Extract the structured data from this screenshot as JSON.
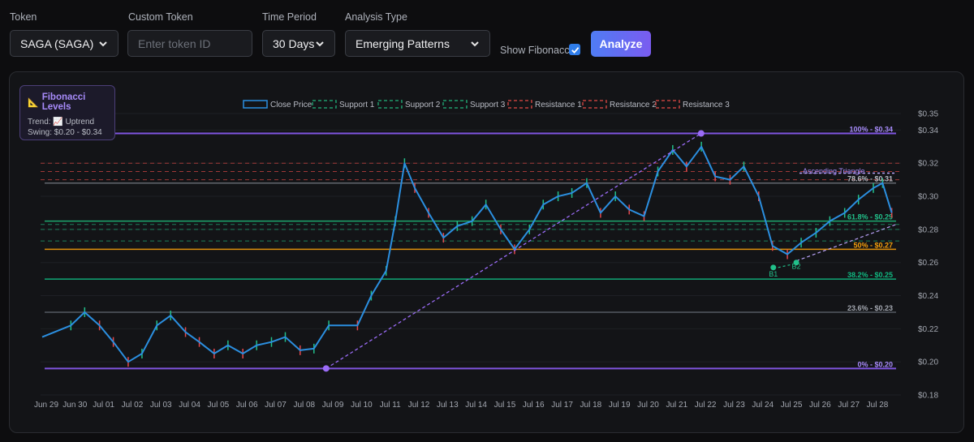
{
  "controls": {
    "token_label": "Token",
    "token_value": "SAGA (SAGA)",
    "custom_token_label": "Custom Token",
    "custom_token_placeholder": "Enter token ID",
    "time_period_label": "Time Period",
    "time_period_value": "30 Days",
    "analysis_type_label": "Analysis Type",
    "analysis_type_value": "Emerging Patterns",
    "show_fibonacci_label": "Show Fibonacci",
    "show_fibonacci_checked": true,
    "analyze_label": "Analyze"
  },
  "fib_panel": {
    "title": "Fibonacci Levels",
    "trend": "Trend: 📈 Uptrend",
    "swing": "Swing: $0.20 - $0.34"
  },
  "colors": {
    "price": "#2b8fe0",
    "bull": "#22c08a",
    "bear": "#e5484d",
    "support": "#1f9a6b",
    "resistance": "#c2413f",
    "fib": "#8b5cf6",
    "fib50": "#f59e0b",
    "fib382": "#10b981"
  },
  "chart_data": {
    "type": "line",
    "legend": [
      "Close Price",
      "Support 1",
      "Support 2",
      "Support 3",
      "Resistance 1",
      "Resistance 2",
      "Resistance 3"
    ],
    "x_ticks": [
      "Jun 29",
      "Jun 30",
      "Jul 01",
      "Jul 02",
      "Jul 03",
      "Jul 04",
      "Jul 05",
      "Jul 06",
      "Jul 07",
      "Jul 08",
      "Jul 09",
      "Jul 10",
      "Jul 11",
      "Jul 12",
      "Jul 13",
      "Jul 14",
      "Jul 15",
      "Jul 16",
      "Jul 17",
      "Jul 18",
      "Jul 19",
      "Jul 20",
      "Jul 21",
      "Jul 22",
      "Jul 23",
      "Jul 24",
      "Jul 25",
      "Jul 26",
      "Jul 27",
      "Jul 28"
    ],
    "y_ticks": [
      "$0.35",
      "$0.34",
      "$0.32",
      "$0.30",
      "$0.28",
      "$0.26",
      "$0.24",
      "$0.22",
      "$0.20",
      "$0.18"
    ],
    "ylim": [
      0.18,
      0.35
    ],
    "close_path": [
      [
        "Jun 29",
        0.215
      ],
      [
        "Jun 30",
        0.222
      ],
      [
        "Jun 30",
        0.23
      ],
      [
        "Jul 01",
        0.222
      ],
      [
        "Jul 01",
        0.212
      ],
      [
        "Jul 02",
        0.2
      ],
      [
        "Jul 02",
        0.205
      ],
      [
        "Jul 03",
        0.222
      ],
      [
        "Jul 03",
        0.228
      ],
      [
        "Jul 04",
        0.218
      ],
      [
        "Jul 04",
        0.212
      ],
      [
        "Jul 05",
        0.205
      ],
      [
        "Jul 05",
        0.21
      ],
      [
        "Jul 06",
        0.205
      ],
      [
        "Jul 06",
        0.21
      ],
      [
        "Jul 07",
        0.212
      ],
      [
        "Jul 07",
        0.215
      ],
      [
        "Jul 08",
        0.207
      ],
      [
        "Jul 08",
        0.208
      ],
      [
        "Jul 09",
        0.222
      ],
      [
        "Jul 10",
        0.222
      ],
      [
        "Jul 10",
        0.24
      ],
      [
        "Jul 11",
        0.255
      ],
      [
        "Jul 11",
        0.285
      ],
      [
        "Jul 11",
        0.32
      ],
      [
        "Jul 12",
        0.305
      ],
      [
        "Jul 12",
        0.29
      ],
      [
        "Jul 13",
        0.275
      ],
      [
        "Jul 13",
        0.282
      ],
      [
        "Jul 14",
        0.285
      ],
      [
        "Jul 14",
        0.295
      ],
      [
        "Jul 15",
        0.28
      ],
      [
        "Jul 15",
        0.268
      ],
      [
        "Jul 16",
        0.28
      ],
      [
        "Jul 16",
        0.295
      ],
      [
        "Jul 17",
        0.3
      ],
      [
        "Jul 17",
        0.302
      ],
      [
        "Jul 18",
        0.308
      ],
      [
        "Jul 18",
        0.29
      ],
      [
        "Jul 19",
        0.3
      ],
      [
        "Jul 19",
        0.292
      ],
      [
        "Jul 20",
        0.288
      ],
      [
        "Jul 20",
        0.315
      ],
      [
        "Jul 21",
        0.328
      ],
      [
        "Jul 21",
        0.318
      ],
      [
        "Jul 22",
        0.33
      ],
      [
        "Jul 22",
        0.312
      ],
      [
        "Jul 23",
        0.31
      ],
      [
        "Jul 23",
        0.318
      ],
      [
        "Jul 24",
        0.3
      ],
      [
        "Jul 24",
        0.27
      ],
      [
        "Jul 25",
        0.265
      ],
      [
        "Jul 25",
        0.272
      ],
      [
        "Jul 26",
        0.278
      ],
      [
        "Jul 26",
        0.285
      ],
      [
        "Jul 27",
        0.29
      ],
      [
        "Jul 27",
        0.298
      ],
      [
        "Jul 28",
        0.305
      ],
      [
        "Jul 28",
        0.308
      ],
      [
        "Jul 28",
        0.29
      ]
    ],
    "fib_levels": [
      {
        "label": "100% - $0.34",
        "value": 0.338
      },
      {
        "label": "78.6% - $0.31",
        "value": 0.308
      },
      {
        "label": "61.8% - $0.29",
        "value": 0.285
      },
      {
        "label": "50% - $0.27",
        "value": 0.268
      },
      {
        "label": "38.2% - $0.25",
        "value": 0.25
      },
      {
        "label": "23.6% - $0.23",
        "value": 0.23
      },
      {
        "label": "0% - $0.20",
        "value": 0.196
      }
    ],
    "support_levels": [
      0.283,
      0.28,
      0.273
    ],
    "resistance_levels": [
      0.32,
      0.315,
      0.31
    ],
    "pattern": {
      "label": "Ascending Triangle",
      "points": [
        "B1",
        "B2"
      ]
    }
  }
}
